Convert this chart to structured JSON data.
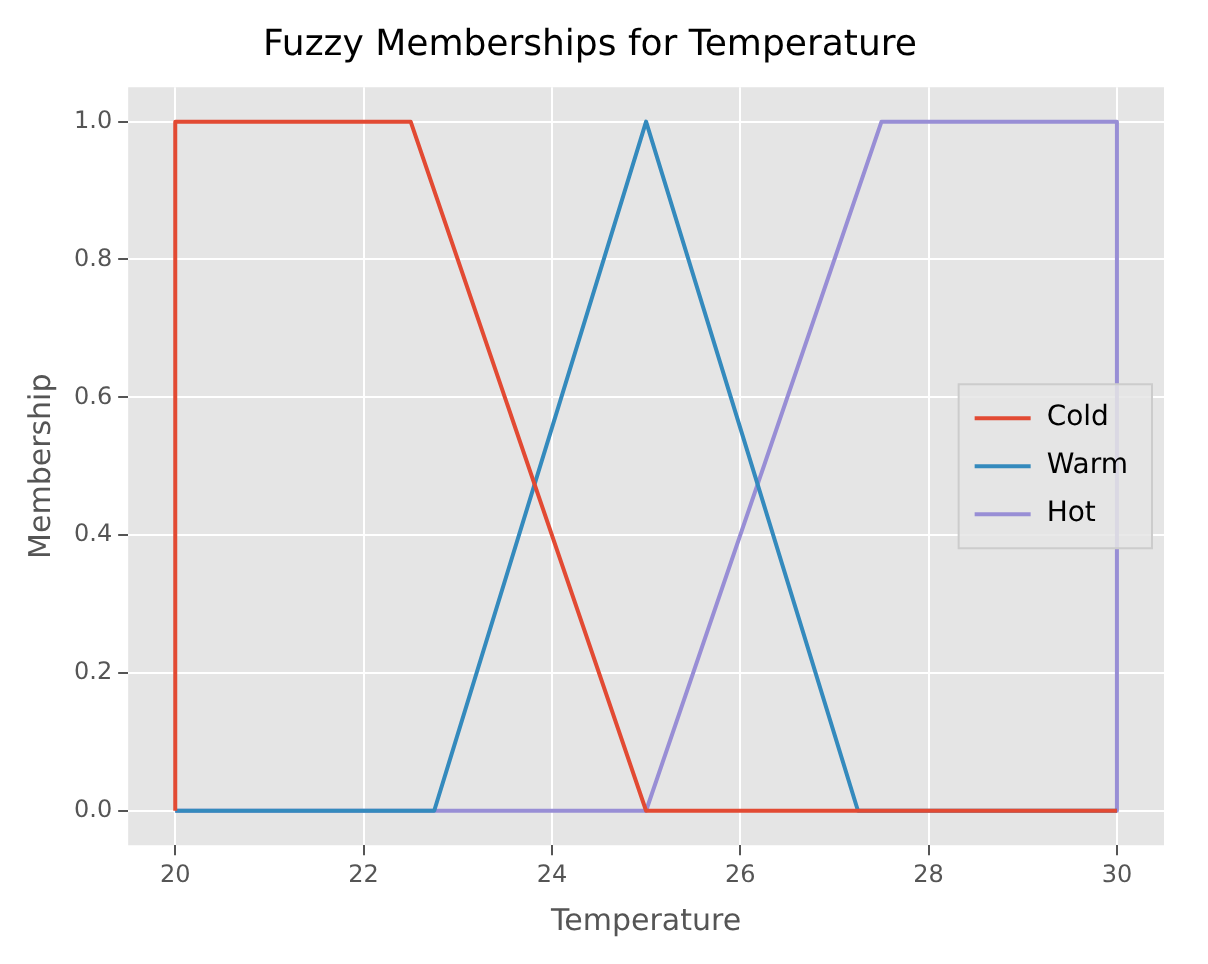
{
  "chart_data": {
    "type": "line",
    "title": "Fuzzy Memberships for Temperature",
    "xlabel": "Temperature",
    "ylabel": "Membership",
    "series": [
      {
        "name": "Cold",
        "color": "#e24a33",
        "x": [
          20,
          20,
          22.5,
          25,
          30
        ],
        "values": [
          0,
          1,
          1,
          0,
          0
        ]
      },
      {
        "name": "Warm",
        "color": "#348abd",
        "x": [
          20,
          22.75,
          25,
          27.25,
          30
        ],
        "values": [
          0,
          0,
          1,
          0,
          0
        ]
      },
      {
        "name": "Hot",
        "color": "#988ed5",
        "x": [
          20,
          25,
          27.5,
          30,
          30
        ],
        "values": [
          0,
          0,
          1,
          1,
          0
        ]
      }
    ],
    "xlim": [
      19.5,
      30.5
    ],
    "xticks": [
      20,
      22,
      24,
      26,
      28,
      30
    ],
    "ylim": [
      -0.05,
      1.05
    ],
    "yticks": [
      {
        "value": 0,
        "label": "0.0"
      },
      {
        "value": 0.2,
        "label": "0.2"
      },
      {
        "value": 0.4,
        "label": "0.4"
      },
      {
        "value": 0.6,
        "label": "0.6"
      },
      {
        "value": 0.8,
        "label": "0.8"
      },
      {
        "value": 1,
        "label": "1.0"
      }
    ],
    "grid": true,
    "legend": "right",
    "marker": "none",
    "line_style": "solid"
  }
}
